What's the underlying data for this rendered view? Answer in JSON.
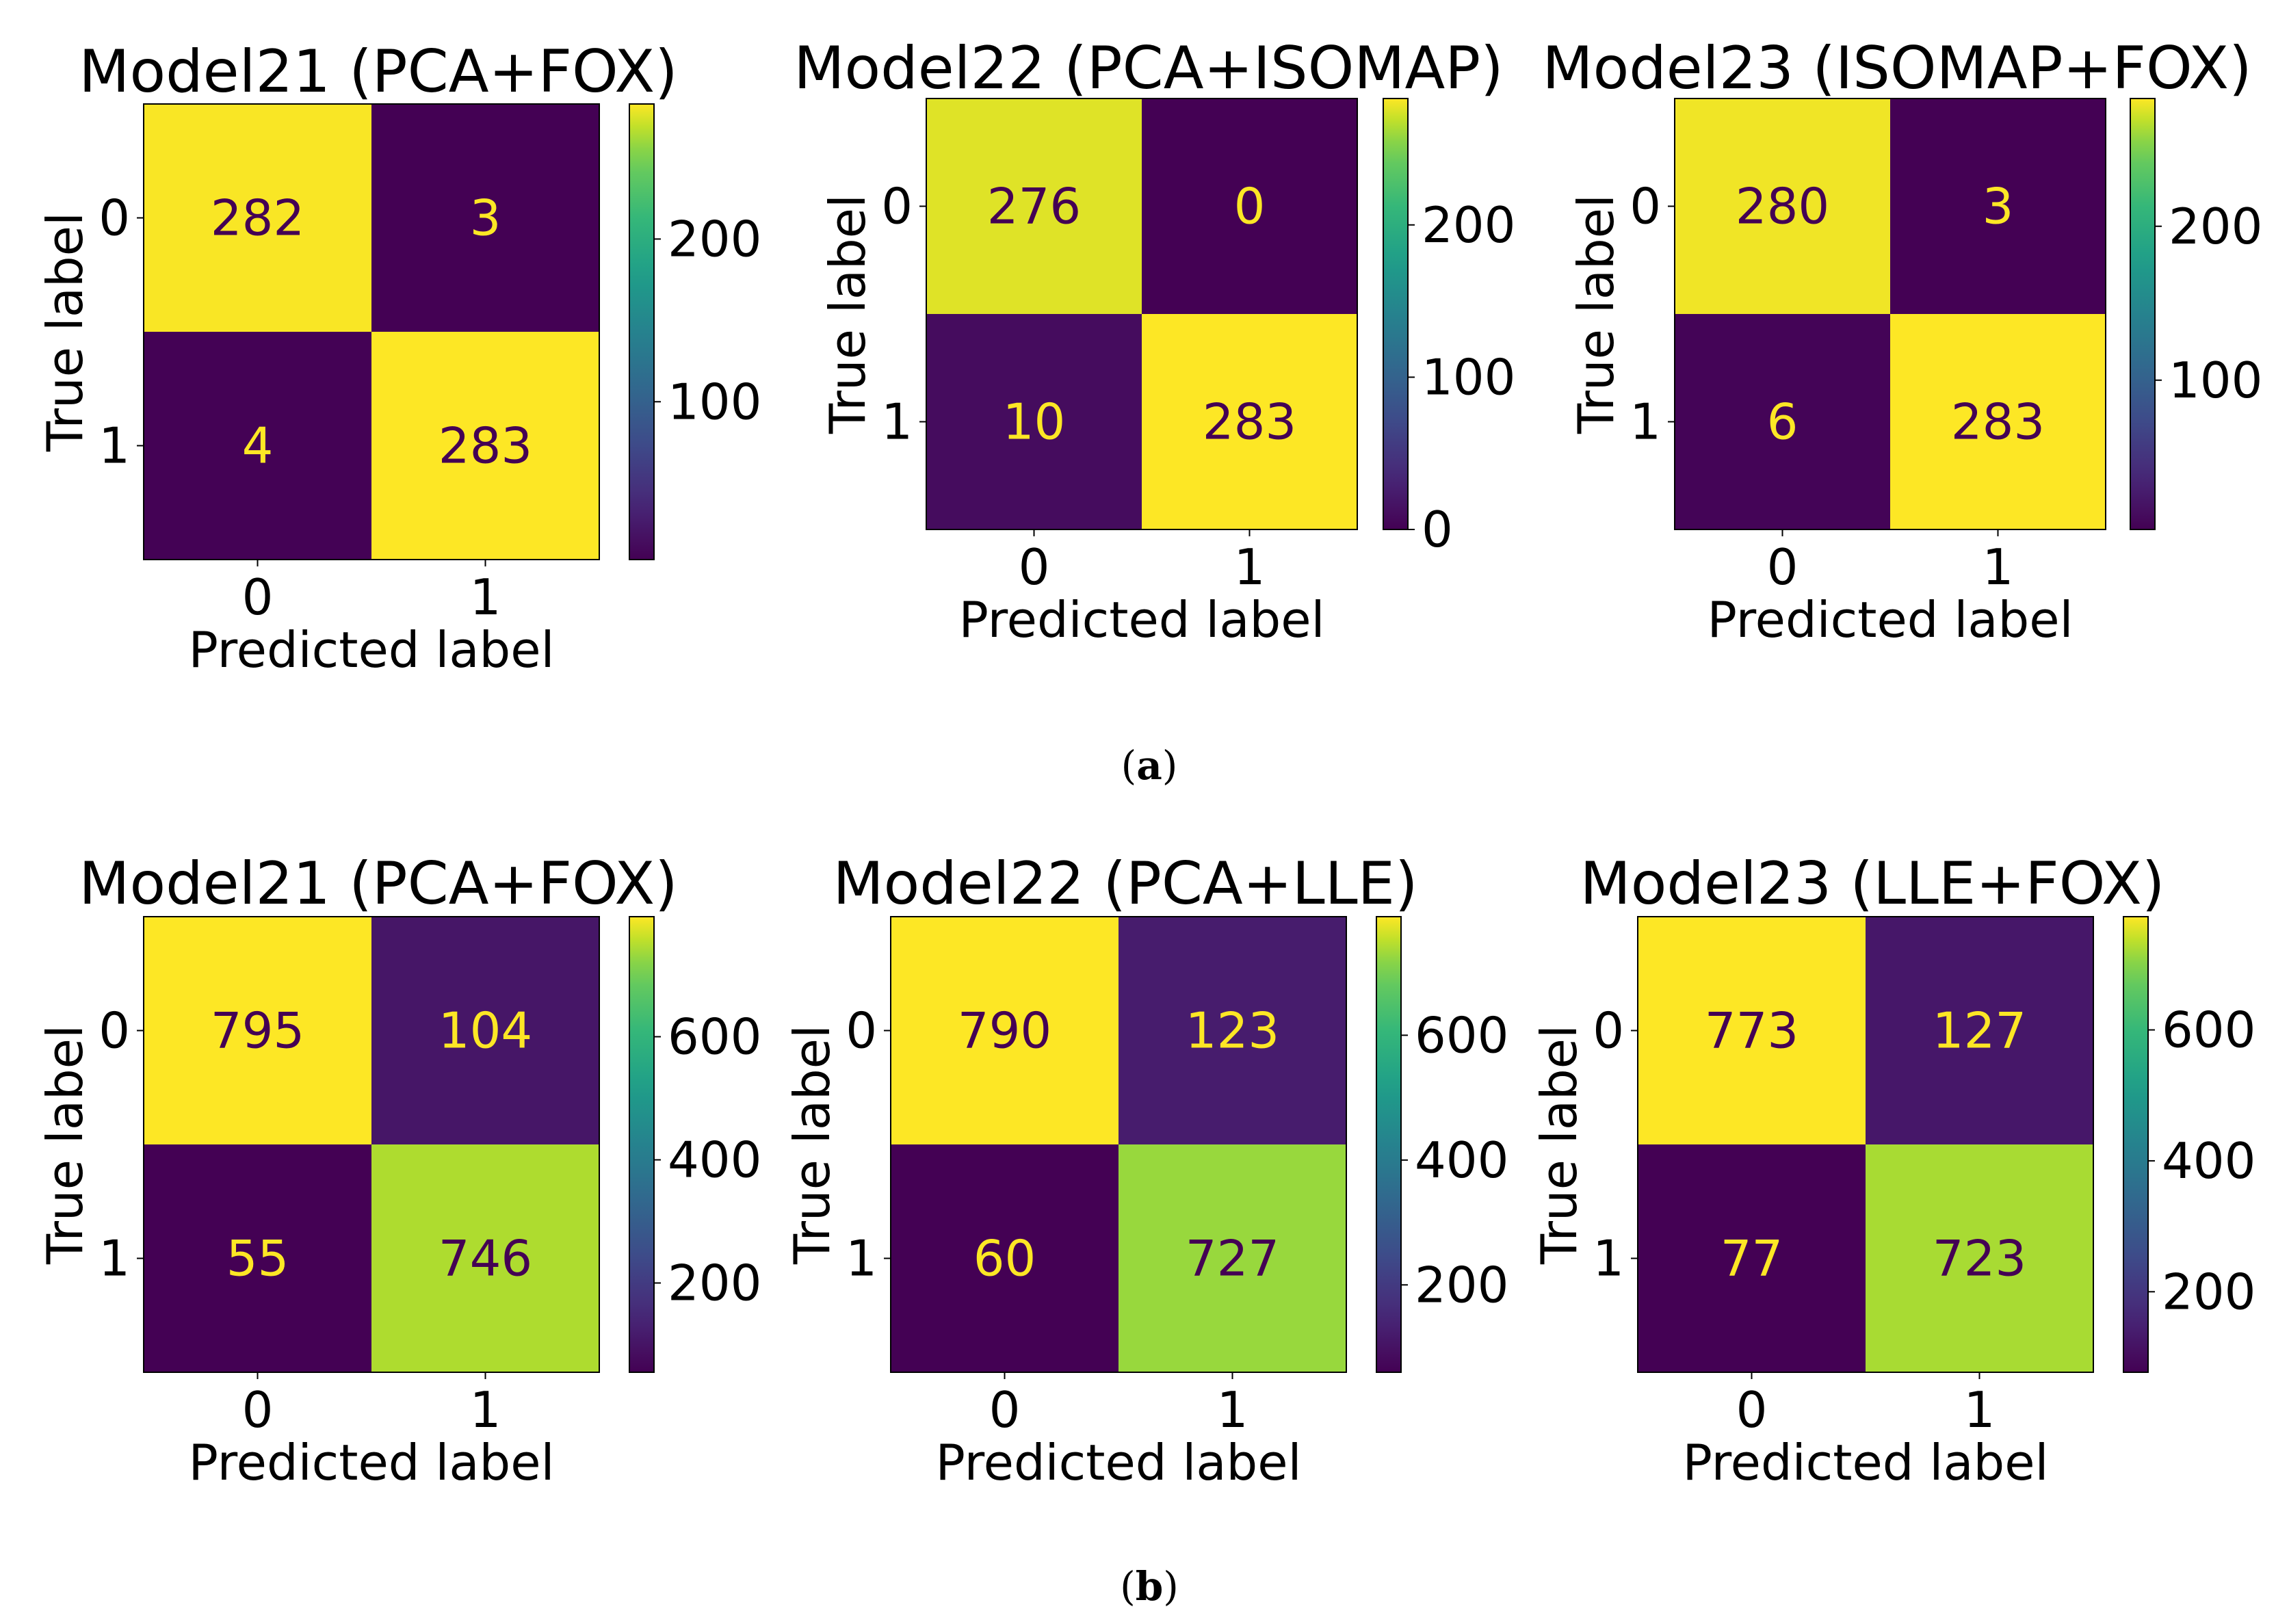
{
  "figure": {
    "panel_a_caption": "a",
    "panel_b_caption": "b"
  },
  "colors": {
    "viridis_low": "#440154",
    "viridis_high": "#fde725",
    "text_on_dark": "#fde725",
    "text_on_light": "#440154"
  },
  "chart_data": [
    {
      "type": "heatmap",
      "panel": "a",
      "title": "Model21 (PCA+FOX)",
      "xlabel": "Predicted label",
      "ylabel": "True label",
      "x_ticks": [
        "0",
        "1"
      ],
      "y_ticks": [
        "0",
        "1"
      ],
      "matrix": [
        [
          282,
          3
        ],
        [
          4,
          283
        ]
      ],
      "colorbar": {
        "min": 3,
        "max": 283,
        "ticks": [
          100,
          200
        ]
      }
    },
    {
      "type": "heatmap",
      "panel": "a",
      "title": "Model22 (PCA+ISOMAP)",
      "xlabel": "Predicted label",
      "ylabel": "True label",
      "x_ticks": [
        "0",
        "1"
      ],
      "y_ticks": [
        "0",
        "1"
      ],
      "matrix": [
        [
          276,
          0
        ],
        [
          10,
          283
        ]
      ],
      "colorbar": {
        "min": 0,
        "max": 283,
        "ticks": [
          0,
          100,
          200
        ]
      }
    },
    {
      "type": "heatmap",
      "panel": "a",
      "title": "Model23 (ISOMAP+FOX)",
      "xlabel": "Predicted label",
      "ylabel": "True label",
      "x_ticks": [
        "0",
        "1"
      ],
      "y_ticks": [
        "0",
        "1"
      ],
      "matrix": [
        [
          280,
          3
        ],
        [
          6,
          283
        ]
      ],
      "colorbar": {
        "min": 3,
        "max": 283,
        "ticks": [
          100,
          200
        ]
      }
    },
    {
      "type": "heatmap",
      "panel": "b",
      "title": "Model21 (PCA+FOX)",
      "xlabel": "Predicted label",
      "ylabel": "True label",
      "x_ticks": [
        "0",
        "1"
      ],
      "y_ticks": [
        "0",
        "1"
      ],
      "matrix": [
        [
          795,
          104
        ],
        [
          55,
          746
        ]
      ],
      "colorbar": {
        "min": 55,
        "max": 795,
        "ticks": [
          200,
          400,
          600
        ]
      }
    },
    {
      "type": "heatmap",
      "panel": "b",
      "title": "Model22 (PCA+LLE)",
      "xlabel": "Predicted label",
      "ylabel": "True label",
      "x_ticks": [
        "0",
        "1"
      ],
      "y_ticks": [
        "0",
        "1"
      ],
      "matrix": [
        [
          790,
          123
        ],
        [
          60,
          727
        ]
      ],
      "colorbar": {
        "min": 60,
        "max": 790,
        "ticks": [
          200,
          400,
          600
        ]
      }
    },
    {
      "type": "heatmap",
      "panel": "b",
      "title": "Model23 (LLE+FOX)",
      "xlabel": "Predicted label",
      "ylabel": "True label",
      "x_ticks": [
        "0",
        "1"
      ],
      "y_ticks": [
        "0",
        "1"
      ],
      "matrix": [
        [
          773,
          127
        ],
        [
          77,
          723
        ]
      ],
      "colorbar": {
        "min": 77,
        "max": 773,
        "ticks": [
          200,
          400,
          600
        ]
      }
    }
  ]
}
